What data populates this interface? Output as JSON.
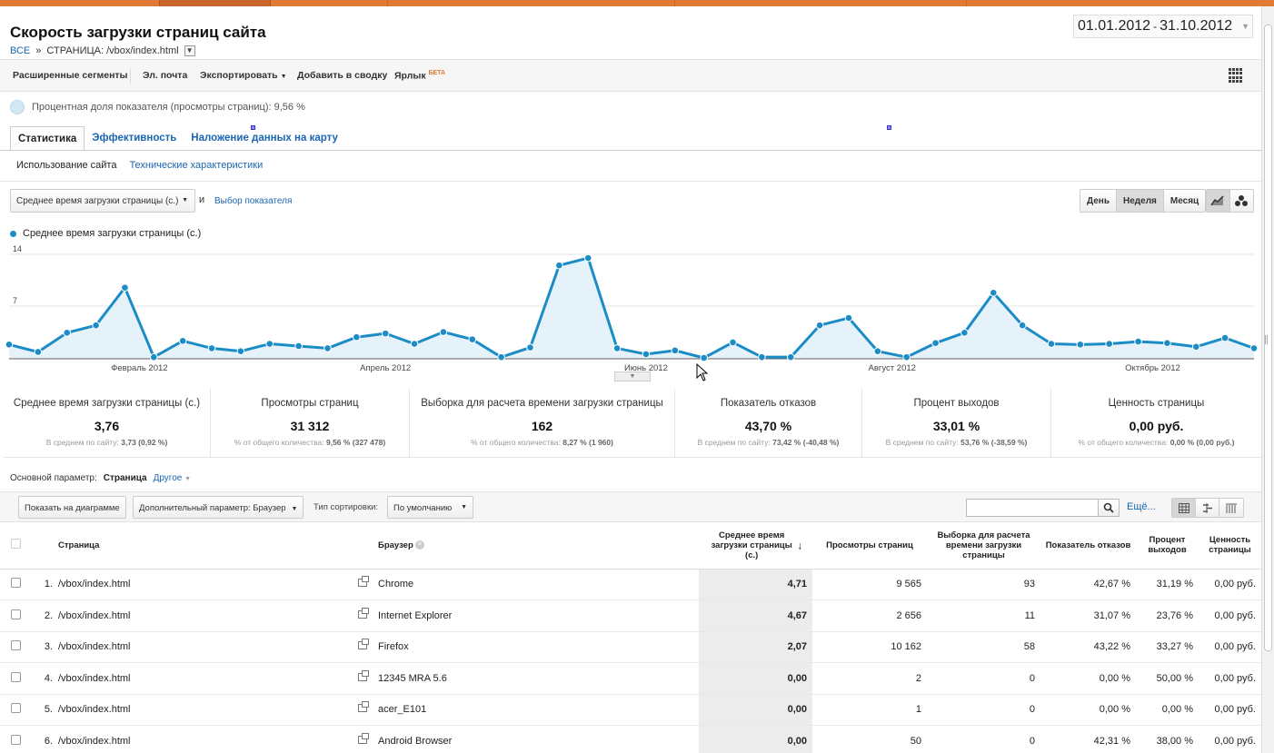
{
  "header": {
    "title": "Скорость загрузки страниц сайта",
    "breadcrumb_all": "ВСЕ",
    "breadcrumb_sep": "»",
    "breadcrumb_page": "СТРАНИЦА: /vbox/index.html",
    "date_start": "01.01.2012",
    "date_sep": "-",
    "date_end": "31.10.2012"
  },
  "toolbar": {
    "segments": "Расширенные сегменты",
    "email": "Эл. почта",
    "export": "Экспортировать",
    "add_dashboard": "Добавить в сводку",
    "shortcut": "Ярлык",
    "beta": "БЕТА"
  },
  "share_text": "Процентная доля показателя (просмотры страниц): 9,56 %",
  "tabs": [
    "Статистика",
    "Эффективность",
    "Наложение данных на карту"
  ],
  "subtabs": [
    "Использование сайта",
    "Технические характеристики"
  ],
  "metric_select": {
    "value": "Среднее время загрузки страницы (с.)",
    "and": "и",
    "choose": "Выбор показателя"
  },
  "period_buttons": [
    "День",
    "Неделя",
    "Месяц"
  ],
  "legend_label": "Среднее время загрузки страницы (с.)",
  "chart_data": {
    "type": "area",
    "series": [
      {
        "name": "Среднее время загрузки страницы (с.)",
        "values": [
          1.8,
          0.8,
          3.4,
          4.4,
          9.5,
          0.1,
          2.3,
          1.3,
          0.9,
          1.9,
          1.6,
          1.3,
          2.8,
          3.3,
          1.9,
          3.5,
          2.5,
          0.1,
          1.4,
          12.5,
          13.5,
          1.3,
          0.5,
          1.0,
          0.0,
          2.1,
          0.1,
          0.1,
          4.4,
          5.4,
          0.9,
          0.1,
          2.0,
          3.4,
          8.8,
          4.4,
          1.9,
          1.8,
          1.9,
          2.2,
          2.0,
          1.5,
          2.7,
          1.3
        ],
        "color": "#1c8cc6"
      }
    ],
    "yticks": [
      "14",
      "7"
    ],
    "ylim": [
      0,
      14
    ],
    "xlabels": [
      "Февраль 2012",
      "Апрель 2012",
      "Июнь 2012",
      "Август 2012",
      "Октябрь 2012"
    ],
    "xlabel_positions": [
      4.5,
      13,
      22,
      30.5,
      39.5
    ],
    "grid": true
  },
  "scorecards": [
    {
      "title": "Среднее время загрузки страницы (с.)",
      "value": "3,76",
      "sub_prefix": "В среднем по сайту:",
      "sub_value": "3,73 (0,92 %)"
    },
    {
      "title": "Просмотры страниц",
      "value": "31 312",
      "sub_prefix": "% от общего количества:",
      "sub_value": "9,56 % (327 478)"
    },
    {
      "title": "Выборка для расчета времени загрузки страницы",
      "value": "162",
      "sub_prefix": "% от общего количества:",
      "sub_value": "8,27 % (1 960)"
    },
    {
      "title": "Показатель отказов",
      "value": "43,70 %",
      "sub_prefix": "В среднем по сайту:",
      "sub_value": "73,42 % (-40,48 %)"
    },
    {
      "title": "Процент выходов",
      "value": "33,01 %",
      "sub_prefix": "В среднем по сайту:",
      "sub_value": "53,76 % (-38,59 %)"
    },
    {
      "title": "Ценность страницы",
      "value": "0,00 руб.",
      "sub_prefix": "% от общего количества:",
      "sub_value": "0,00 % (0,00 руб.)"
    }
  ],
  "primary_dim": {
    "label": "Основной параметр:",
    "current": "Страница",
    "other": "Другое"
  },
  "table_bar": {
    "plot_rows": "Показать на диаграмме",
    "secondary_dim": "Дополнительный параметр: Браузер",
    "sort_label": "Тип сортировки:",
    "sort_value": "По умолчанию",
    "more": "Ещё..."
  },
  "table": {
    "headers": {
      "page": "Страница",
      "browser": "Браузер",
      "load_time": "Среднее время загрузки страницы (с.)",
      "pageviews": "Просмотры страниц",
      "sample": "Выборка для расчета времени загрузки страницы",
      "bounce": "Показатель отказов",
      "exit": "Процент выходов",
      "value": "Ценность страницы"
    },
    "rows": [
      {
        "n": "1.",
        "page": "/vbox/index.html",
        "browser": "Chrome",
        "load": "4,71",
        "views": "9 565",
        "sample": "93",
        "bounce": "42,67 %",
        "exit": "31,19 %",
        "value": "0,00 руб."
      },
      {
        "n": "2.",
        "page": "/vbox/index.html",
        "browser": "Internet Explorer",
        "load": "4,67",
        "views": "2 656",
        "sample": "11",
        "bounce": "31,07 %",
        "exit": "23,76 %",
        "value": "0,00 руб."
      },
      {
        "n": "3.",
        "page": "/vbox/index.html",
        "browser": "Firefox",
        "load": "2,07",
        "views": "10 162",
        "sample": "58",
        "bounce": "43,22 %",
        "exit": "33,27 %",
        "value": "0,00 руб."
      },
      {
        "n": "4.",
        "page": "/vbox/index.html",
        "browser": "12345 MRA 5.6",
        "load": "0,00",
        "views": "2",
        "sample": "0",
        "bounce": "0,00 %",
        "exit": "50,00 %",
        "value": "0,00 руб."
      },
      {
        "n": "5.",
        "page": "/vbox/index.html",
        "browser": "acer_E101",
        "load": "0,00",
        "views": "1",
        "sample": "0",
        "bounce": "0,00 %",
        "exit": "0,00 %",
        "value": "0,00 руб."
      },
      {
        "n": "6.",
        "page": "/vbox/index.html",
        "browser": "Android Browser",
        "load": "0,00",
        "views": "50",
        "sample": "0",
        "bounce": "42,31 %",
        "exit": "38,00 %",
        "value": "0,00 руб."
      }
    ]
  }
}
